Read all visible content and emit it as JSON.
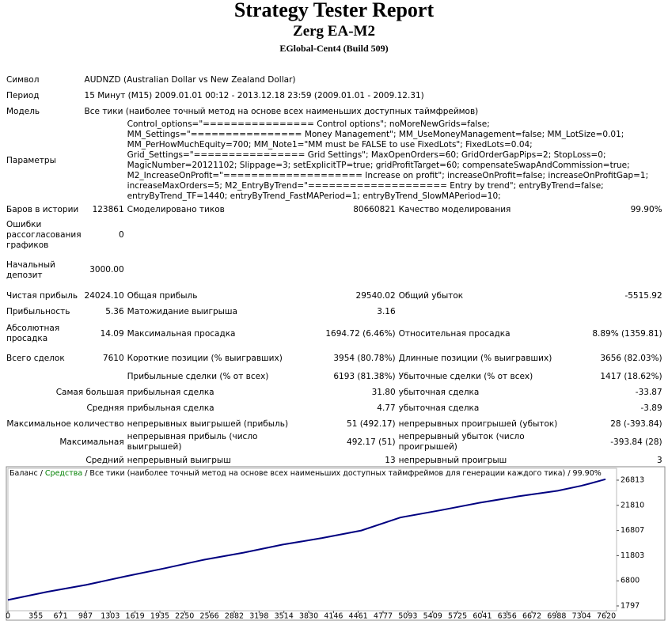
{
  "header": {
    "title": "Strategy Tester Report",
    "subtitle": "Zerg EA-M2",
    "broker": "EGlobal-Cent4 (Build 509)"
  },
  "table": {
    "rows": [
      [
        "Символ",
        "AUDNZD (Australian Dollar vs New Zealand Dollar)"
      ],
      [
        "Период",
        "15 Минут (M15) 2009.01.01 00:12 - 2013.12.18 23:59 (2009.01.01 - 2009.12.31)"
      ],
      [
        "Модель",
        "Все тики (наиболее точный метод на основе всех наименьших доступных таймфреймов)"
      ],
      [
        "Параметры",
        "Control_options=\"================ Control options\"; noMoreNewGrids=false; MM_Settings=\"================ Money Management\"; MM_UseMoneyManagement=false; MM_LotSize=0.01; MM_PerHowMuchEquity=700; MM_Note1=\"MM must be FALSE to use FixedLots\"; FixedLots=0.04; Grid_Settings=\"================ Grid Settings\"; MaxOpenOrders=60; GridOrderGapPips=2; StopLoss=0; MagicNumber=20121102; Slippage=3; setExplicitTP=true; gridProfitTarget=60; compensateSwapAndCommission=true; M2_IncreaseOnProfit=\"==================== Increase on profit\"; increaseOnProfit=false; increaseOnProfitGap=1; increaseMaxOrders=5; M2_EntryByTrend=\"==================== Entry by trend\"; entryByTrend=false; entryByTrend_TF=1440; entryByTrend_FastMAPeriod=1; entryByTrend_SlowMAPeriod=10;"
      ],
      [
        "Баров в истории",
        "123861",
        "Смоделировано тиков",
        "80660821",
        "Качество моделирования",
        "99.90%"
      ],
      [
        "Ошибки рассогласования графиков",
        "0"
      ],
      [
        "Начальный депозит",
        "3000.00"
      ],
      [
        "Чистая прибыль",
        "24024.10",
        "Общая прибыль",
        "29540.02",
        "Общий убыток",
        "-5515.92"
      ],
      [
        "Прибыльность",
        "5.36",
        "Матожидание выигрыша",
        "3.16"
      ],
      [
        "Абсолютная просадка",
        "14.09",
        "Максимальная просадка",
        "1694.72 (6.46%)",
        "Относительная просадка",
        "8.89% (1359.81)"
      ],
      [
        "Всего сделок",
        "7610",
        "Короткие позиции (% выигравших)",
        "3954 (80.78%)",
        "Длинные позиции (% выигравших)",
        "3656 (82.03%)"
      ],
      [
        "Прибыльные сделки (% от всех)",
        "6193 (81.38%)",
        "Убыточные сделки (% от всех)",
        "1417 (18.62%)"
      ],
      [
        "Самая большая",
        "прибыльная сделка",
        "31.80",
        "убыточная сделка",
        "-33.87"
      ],
      [
        "Средняя",
        "прибыльная сделка",
        "4.77",
        "убыточная сделка",
        "-3.89"
      ],
      [
        "Максимальное количество",
        "непрерывных выигрышей (прибыль)",
        "51 (492.17)",
        "непрерывных проигрышей (убыток)",
        "28 (-393.84)"
      ],
      [
        "Максимальная",
        "непрерывная прибыль (число выигрышей)",
        "492.17 (51)",
        "непрерывный убыток (число проигрышей)",
        "-393.84 (28)"
      ],
      [
        "Средний",
        "непрерывный выигрыш",
        "13",
        "непрерывный проигрыш",
        "3"
      ]
    ]
  },
  "chart_data": {
    "type": "line",
    "legend": [
      "Баланс",
      " / ",
      "Средства",
      " / Все тики (наиболее точный метод на основе всех наименьших доступных таймфреймов для генерации каждого тика) / 99.90%"
    ],
    "legend_colors": [
      "#000000",
      "#000000",
      "#008000",
      "#000000"
    ],
    "x": [
      0,
      500,
      1000,
      1500,
      2000,
      2500,
      3000,
      3500,
      4000,
      4500,
      5000,
      5500,
      6000,
      6500,
      7000,
      7300,
      7400,
      7610
    ],
    "series": [
      {
        "name": "Баланс",
        "color": "#000080",
        "values": [
          3000,
          4600,
          6000,
          7700,
          9300,
          11000,
          12400,
          14000,
          15300,
          16800,
          19400,
          20800,
          22300,
          23600,
          24700,
          25700,
          26100,
          27000
        ]
      }
    ],
    "xlim": [
      0,
      7750
    ],
    "ylim": [
      850,
      29170
    ],
    "xticks": [
      0,
      355,
      671,
      987,
      1303,
      1619,
      1935,
      2250,
      2566,
      2882,
      3198,
      3514,
      3830,
      4146,
      4461,
      4777,
      5093,
      5409,
      5725,
      6041,
      6356,
      6672,
      6988,
      7304,
      7620
    ],
    "yticks": [
      1797,
      6800,
      11803,
      16807,
      21810,
      26813
    ]
  }
}
